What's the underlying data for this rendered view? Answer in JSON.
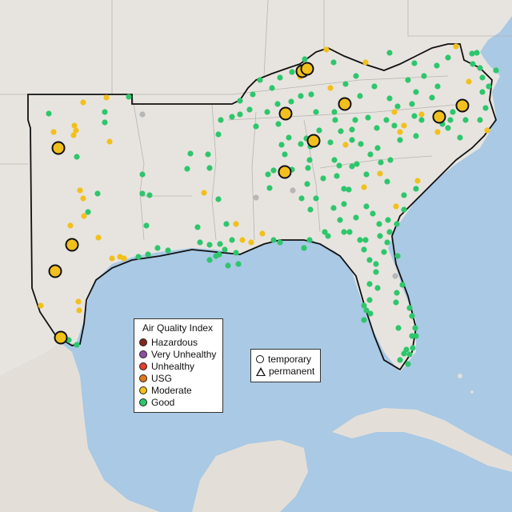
{
  "legend": {
    "title": "Air Quality Index",
    "categories": [
      {
        "label": "Hazardous",
        "color": "#7e2a1e"
      },
      {
        "label": "Very Unhealthy",
        "color": "#8e4fa0"
      },
      {
        "label": "Unhealthy",
        "color": "#e0402c"
      },
      {
        "label": "USG",
        "color": "#e07a1a"
      },
      {
        "label": "Moderate",
        "color": "#f2c01d"
      },
      {
        "label": "Good",
        "color": "#2ec66c"
      }
    ]
  },
  "shape_legend": {
    "temporary": "temporary",
    "permanent": "permanent"
  },
  "colors": {
    "land": "#e7e4df",
    "water": "#a9c9e4",
    "no_data": "#b7b7b7"
  }
}
